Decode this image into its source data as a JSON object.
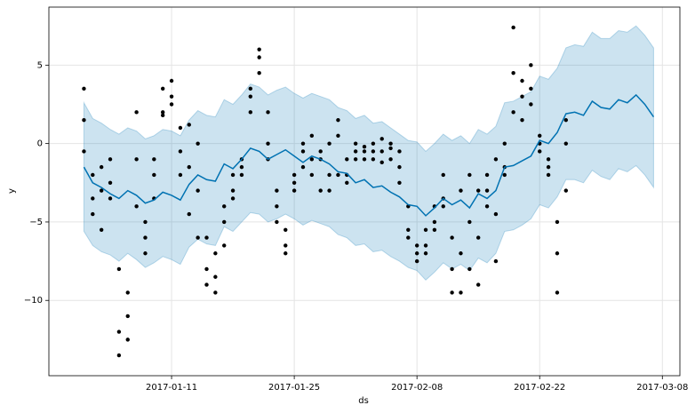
{
  "chart_data": {
    "type": "forecast",
    "xlabel": "ds",
    "ylabel": "y",
    "xlim": [
      "2016-12-28",
      "2017-03-10"
    ],
    "xticks": [
      "2017-01-11",
      "2017-01-25",
      "2017-02-08",
      "2017-02-22",
      "2017-03-08"
    ],
    "ylim": [
      -14.8,
      8.7
    ],
    "yticks": [
      {
        "value": -10,
        "label": "−10"
      },
      {
        "value": -5,
        "label": "−5"
      },
      0,
      5
    ],
    "grid": true,
    "points": {
      "color": "#000000",
      "x": [
        "2017-01-01",
        "2017-01-01",
        "2017-01-01",
        "2017-01-02",
        "2017-01-02",
        "2017-01-02",
        "2017-01-03",
        "2017-01-03",
        "2017-01-03",
        "2017-01-04",
        "2017-01-04",
        "2017-01-04",
        "2017-01-05",
        "2017-01-05",
        "2017-01-05",
        "2017-01-06",
        "2017-01-06",
        "2017-01-06",
        "2017-01-07",
        "2017-01-07",
        "2017-01-07",
        "2017-01-08",
        "2017-01-08",
        "2017-01-08",
        "2017-01-09",
        "2017-01-09",
        "2017-01-09",
        "2017-01-10",
        "2017-01-10",
        "2017-01-10",
        "2017-01-11",
        "2017-01-11",
        "2017-01-11",
        "2017-01-12",
        "2017-01-12",
        "2017-01-12",
        "2017-01-13",
        "2017-01-13",
        "2017-01-13",
        "2017-01-14",
        "2017-01-14",
        "2017-01-14",
        "2017-01-15",
        "2017-01-15",
        "2017-01-15",
        "2017-01-16",
        "2017-01-16",
        "2017-01-16",
        "2017-01-17",
        "2017-01-17",
        "2017-01-17",
        "2017-01-18",
        "2017-01-18",
        "2017-01-18",
        "2017-01-19",
        "2017-01-19",
        "2017-01-19",
        "2017-01-20",
        "2017-01-20",
        "2017-01-20",
        "2017-01-21",
        "2017-01-21",
        "2017-01-21",
        "2017-01-22",
        "2017-01-22",
        "2017-01-22",
        "2017-01-23",
        "2017-01-23",
        "2017-01-23",
        "2017-01-24",
        "2017-01-24",
        "2017-01-24",
        "2017-01-25",
        "2017-01-25",
        "2017-01-25",
        "2017-01-26",
        "2017-01-26",
        "2017-01-26",
        "2017-01-27",
        "2017-01-27",
        "2017-01-27",
        "2017-01-28",
        "2017-01-28",
        "2017-01-28",
        "2017-01-29",
        "2017-01-29",
        "2017-01-29",
        "2017-01-30",
        "2017-01-30",
        "2017-01-30",
        "2017-01-31",
        "2017-01-31",
        "2017-01-31",
        "2017-02-01",
        "2017-02-01",
        "2017-02-01",
        "2017-02-02",
        "2017-02-02",
        "2017-02-02",
        "2017-02-03",
        "2017-02-03",
        "2017-02-03",
        "2017-02-04",
        "2017-02-04",
        "2017-02-04",
        "2017-02-05",
        "2017-02-05",
        "2017-02-05",
        "2017-02-06",
        "2017-02-06",
        "2017-02-06",
        "2017-02-07",
        "2017-02-07",
        "2017-02-07",
        "2017-02-08",
        "2017-02-08",
        "2017-02-08",
        "2017-02-09",
        "2017-02-09",
        "2017-02-09",
        "2017-02-10",
        "2017-02-10",
        "2017-02-10",
        "2017-02-11",
        "2017-02-11",
        "2017-02-11",
        "2017-02-12",
        "2017-02-12",
        "2017-02-12",
        "2017-02-13",
        "2017-02-13",
        "2017-02-13",
        "2017-02-14",
        "2017-02-14",
        "2017-02-14",
        "2017-02-15",
        "2017-02-15",
        "2017-02-15",
        "2017-02-16",
        "2017-02-16",
        "2017-02-16",
        "2017-02-17",
        "2017-02-17",
        "2017-02-17",
        "2017-02-18",
        "2017-02-18",
        "2017-02-18",
        "2017-02-19",
        "2017-02-19",
        "2017-02-19",
        "2017-02-20",
        "2017-02-20",
        "2017-02-20",
        "2017-02-21",
        "2017-02-21",
        "2017-02-21",
        "2017-02-22",
        "2017-02-22",
        "2017-02-22",
        "2017-02-23",
        "2017-02-23",
        "2017-02-23",
        "2017-02-24",
        "2017-02-24",
        "2017-02-24",
        "2017-02-25",
        "2017-02-25",
        "2017-02-25"
      ],
      "values": [
        3.5,
        1.5,
        -0.5,
        -2,
        -3.5,
        -4.5,
        -3,
        -5.5,
        -1.5,
        -1,
        -2.5,
        -3.5,
        -8,
        -12,
        -13.5,
        -11,
        -12.5,
        -9.5,
        2,
        -1,
        -4,
        -5,
        -7,
        -6,
        -2,
        -3.5,
        -1,
        3.5,
        2,
        1.8,
        4,
        3,
        2.5,
        1,
        -0.5,
        -2,
        1.2,
        -1.5,
        -4.5,
        -6,
        -3,
        0,
        -8,
        -9,
        -6,
        -9.5,
        -8.5,
        -7,
        -6.5,
        -4,
        -5,
        -2,
        -3,
        -3.5,
        -1,
        -2,
        -1.5,
        3,
        3.5,
        2,
        5.5,
        6,
        4.5,
        2,
        -1,
        0,
        -4,
        -3,
        -5,
        -6.5,
        -7,
        -5.5,
        -2.5,
        -3,
        -2,
        0,
        -0.5,
        -1.5,
        -1,
        -2,
        0.5,
        -0.5,
        -3,
        -1,
        -2,
        -3,
        0,
        1.5,
        0.5,
        -2,
        -1,
        -2,
        -2.5,
        0,
        -0.5,
        -1,
        -0.2,
        -0.5,
        -1,
        0,
        -1,
        -0.5,
        -0.5,
        -1.2,
        0.3,
        0,
        -1,
        -0.3,
        -1.5,
        -0.5,
        -2.5,
        -5.5,
        -6,
        -4,
        -6.5,
        -7.5,
        -7,
        -6.5,
        -7,
        -5.5,
        -5,
        -4,
        -5.5,
        -3.5,
        -2,
        -4,
        -6,
        -9.5,
        -8,
        -3,
        -7,
        -9.5,
        -2,
        -5,
        -8,
        -9,
        -6,
        -3,
        -3,
        -2,
        -4,
        -1,
        -4.5,
        -7.5,
        0,
        -1.5,
        -2,
        2,
        4.5,
        7.4,
        4,
        3,
        1.5,
        3.5,
        5,
        2.5,
        0,
        0.5,
        -0.5,
        -1,
        -2,
        -1.5,
        -5,
        -7,
        -9.5,
        1.5,
        0,
        -3
      ]
    },
    "forecast": {
      "color": "#0072B2",
      "band_color": "#0072B2",
      "x": [
        "2017-01-01",
        "2017-01-02",
        "2017-01-03",
        "2017-01-04",
        "2017-01-05",
        "2017-01-06",
        "2017-01-07",
        "2017-01-08",
        "2017-01-09",
        "2017-01-10",
        "2017-01-11",
        "2017-01-12",
        "2017-01-13",
        "2017-01-14",
        "2017-01-15",
        "2017-01-16",
        "2017-01-17",
        "2017-01-18",
        "2017-01-19",
        "2017-01-20",
        "2017-01-21",
        "2017-01-22",
        "2017-01-23",
        "2017-01-24",
        "2017-01-25",
        "2017-01-26",
        "2017-01-27",
        "2017-01-28",
        "2017-01-29",
        "2017-01-30",
        "2017-01-31",
        "2017-02-01",
        "2017-02-02",
        "2017-02-03",
        "2017-02-04",
        "2017-02-05",
        "2017-02-06",
        "2017-02-07",
        "2017-02-08",
        "2017-02-09",
        "2017-02-10",
        "2017-02-11",
        "2017-02-12",
        "2017-02-13",
        "2017-02-14",
        "2017-02-15",
        "2017-02-16",
        "2017-02-17",
        "2017-02-18",
        "2017-02-19",
        "2017-02-20",
        "2017-02-21",
        "2017-02-22",
        "2017-02-23",
        "2017-02-24",
        "2017-02-25",
        "2017-02-26",
        "2017-02-27",
        "2017-02-28",
        "2017-03-01",
        "2017-03-02",
        "2017-03-03",
        "2017-03-04",
        "2017-03-05",
        "2017-03-06",
        "2017-03-07"
      ],
      "values": [
        -1.5,
        -2.5,
        -2.8,
        -3.2,
        -3.5,
        -3,
        -3.3,
        -3.8,
        -3.6,
        -3.1,
        -3.3,
        -3.6,
        -2.6,
        -2,
        -2.3,
        -2.4,
        -1.3,
        -1.6,
        -1,
        -0.3,
        -0.5,
        -1,
        -0.7,
        -0.4,
        -0.8,
        -1.2,
        -0.8,
        -1,
        -1.3,
        -1.8,
        -1.9,
        -2.5,
        -2.3,
        -2.8,
        -2.7,
        -3.1,
        -3.4,
        -3.9,
        -4,
        -4.6,
        -4.1,
        -3.5,
        -3.9,
        -3.6,
        -4.1,
        -3.2,
        -3.5,
        -3,
        -1.5,
        -1.4,
        -1.1,
        -0.8,
        0.2,
        0,
        0.7,
        1.9,
        2,
        1.8,
        2.7,
        2.3,
        2.2,
        2.8,
        2.6,
        3.1,
        2.5,
        1.7
      ],
      "lower": [
        -5.6,
        -6.5,
        -6.9,
        -7.1,
        -7.5,
        -7,
        -7.4,
        -7.9,
        -7.6,
        -7.2,
        -7.4,
        -7.7,
        -6.6,
        -6.1,
        -6.4,
        -6.5,
        -5.3,
        -5.6,
        -5,
        -4.4,
        -4.5,
        -5,
        -4.8,
        -4.5,
        -4.8,
        -5.2,
        -4.9,
        -5.1,
        -5.3,
        -5.8,
        -6,
        -6.5,
        -6.4,
        -6.9,
        -6.8,
        -7.2,
        -7.5,
        -7.9,
        -8.1,
        -8.7,
        -8.2,
        -7.6,
        -8,
        -7.7,
        -8.1,
        -7.3,
        -7.6,
        -7,
        -5.6,
        -5.5,
        -5.2,
        -4.8,
        -3.9,
        -4.1,
        -3.4,
        -2.3,
        -2.3,
        -2.5,
        -1.7,
        -2.1,
        -2.3,
        -1.6,
        -1.8,
        -1.4,
        -2,
        -2.8
      ],
      "upper": [
        2.6,
        1.6,
        1.3,
        0.9,
        0.6,
        1,
        0.8,
        0.3,
        0.5,
        0.9,
        0.8,
        0.5,
        1.5,
        2.1,
        1.8,
        1.7,
        2.8,
        2.5,
        3.1,
        3.8,
        3.6,
        3.1,
        3.4,
        3.6,
        3.2,
        2.9,
        3.2,
        3,
        2.8,
        2.3,
        2.1,
        1.6,
        1.8,
        1.3,
        1.4,
        1,
        0.6,
        0.2,
        0.1,
        -0.5,
        0,
        0.6,
        0.2,
        0.5,
        0,
        0.9,
        0.6,
        1.1,
        2.6,
        2.7,
        3,
        3.3,
        4.3,
        4.1,
        4.8,
        6.1,
        6.3,
        6.2,
        7.1,
        6.7,
        6.7,
        7.2,
        7.1,
        7.5,
        6.9,
        6.1
      ]
    }
  }
}
